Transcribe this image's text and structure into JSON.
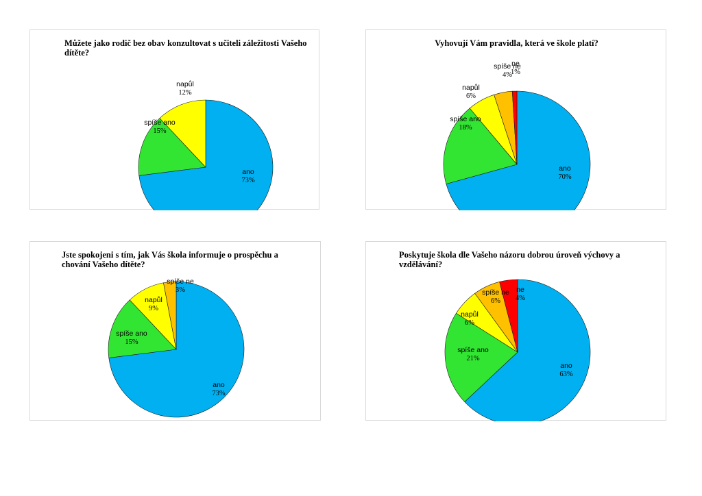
{
  "chart_data": [
    {
      "type": "pie",
      "title": "Můžete jako rodič bez obav konzultovat s učiteli záležitosti Vašeho dítěte?",
      "slices": [
        {
          "label": "ano",
          "value": 73,
          "display": "73%",
          "color": "#00B0F0"
        },
        {
          "label": "spíše ano",
          "value": 15,
          "display": "15%",
          "color": "#33E533"
        },
        {
          "label": "napůl",
          "value": 12,
          "display": "12%",
          "color": "#FFFF00"
        }
      ]
    },
    {
      "type": "pie",
      "title": "Vyhovují Vám pravidla, která ve škole platí?",
      "slices": [
        {
          "label": "ano",
          "value": 70,
          "display": "70%",
          "color": "#00B0F0"
        },
        {
          "label": "spíše ano",
          "value": 18,
          "display": "18%",
          "color": "#33E533"
        },
        {
          "label": "napůl",
          "value": 6,
          "display": "6%",
          "color": "#FFFF00"
        },
        {
          "label": "spíše ne",
          "value": 4,
          "display": "4%",
          "color": "#FFC000"
        },
        {
          "label": "ne",
          "value": 1,
          "display": "1%",
          "color": "#FF0000"
        }
      ]
    },
    {
      "type": "pie",
      "title": "Jste spokojeni s tím, jak Vás škola informuje o prospěchu a chování Vašeho dítěte?",
      "slices": [
        {
          "label": "ano",
          "value": 73,
          "display": "73%",
          "color": "#00B0F0"
        },
        {
          "label": "spíše ano",
          "value": 15,
          "display": "15%",
          "color": "#33E533"
        },
        {
          "label": "napůl",
          "value": 9,
          "display": "9%",
          "color": "#FFFF00"
        },
        {
          "label": "spíše ne",
          "value": 3,
          "display": "3%",
          "color": "#FFC000"
        }
      ]
    },
    {
      "type": "pie",
      "title": "Poskytuje škola dle Vašeho názoru dobrou úroveň výchovy a vzdělávání?",
      "slices": [
        {
          "label": "ano",
          "value": 63,
          "display": "63%",
          "color": "#00B0F0"
        },
        {
          "label": "spíše ano",
          "value": 21,
          "display": "21%",
          "color": "#33E533"
        },
        {
          "label": "napůl",
          "value": 6,
          "display": "6%",
          "color": "#FFFF00"
        },
        {
          "label": "spíše ne",
          "value": 6,
          "display": "6%",
          "color": "#FFC000"
        },
        {
          "label": "ne",
          "value": 4,
          "display": "4%",
          "color": "#FF0000"
        }
      ]
    }
  ]
}
